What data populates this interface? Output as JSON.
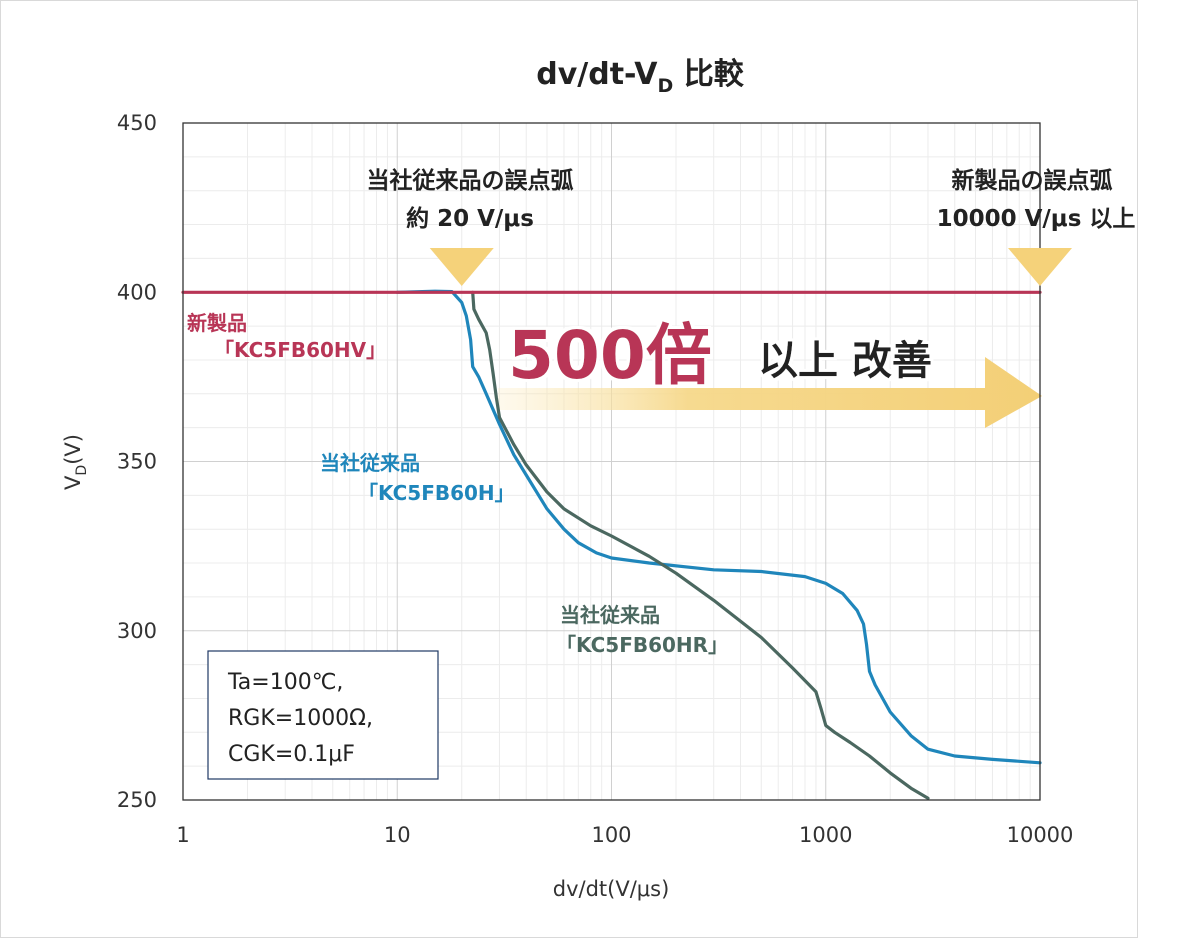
{
  "chart_data": {
    "type": "line",
    "title_main": "dv/dt-V",
    "title_sub": "D",
    "title_tail": " 比較",
    "xlabel": "dv/dt(V/μs)",
    "ylabel_main": "V",
    "ylabel_sub": "D",
    "ylabel_tail": "(V)",
    "xscale": "log",
    "xlim": [
      1,
      10000
    ],
    "ylim": [
      250,
      450
    ],
    "x_ticks": [
      1,
      10,
      100,
      1000,
      10000
    ],
    "x_tick_labels": [
      "1",
      "10",
      "100",
      "1000",
      "10000"
    ],
    "y_ticks": [
      250,
      300,
      350,
      400,
      450
    ],
    "y_tick_labels": [
      "250",
      "300",
      "350",
      "400",
      "450"
    ],
    "series": [
      {
        "name": "新製品「KC5FB60HV」",
        "label_line1": "新製品",
        "label_line2": "「KC5FB60HV」",
        "color": "#b83556",
        "points": [
          [
            1,
            400
          ],
          [
            10000,
            400
          ]
        ]
      },
      {
        "name": "当社従来品「KC5FB60H」",
        "label_line1": "当社従来品",
        "label_line2": "「KC5FB60H」",
        "color": "#1f86bb",
        "points": [
          [
            10,
            400
          ],
          [
            15,
            400.3
          ],
          [
            18,
            400.2
          ],
          [
            20,
            397
          ],
          [
            21,
            393
          ],
          [
            22,
            386
          ],
          [
            22.5,
            378
          ],
          [
            24,
            375
          ],
          [
            26,
            370
          ],
          [
            30,
            361
          ],
          [
            35,
            352
          ],
          [
            40,
            346
          ],
          [
            50,
            336
          ],
          [
            60,
            330
          ],
          [
            70,
            326
          ],
          [
            85,
            323
          ],
          [
            100,
            321.5
          ],
          [
            150,
            320
          ],
          [
            300,
            318
          ],
          [
            500,
            317.5
          ],
          [
            800,
            316
          ],
          [
            1000,
            314
          ],
          [
            1200,
            311
          ],
          [
            1400,
            306
          ],
          [
            1500,
            302
          ],
          [
            1550,
            296
          ],
          [
            1600,
            288
          ],
          [
            1700,
            284
          ],
          [
            2000,
            276
          ],
          [
            2500,
            269
          ],
          [
            3000,
            265
          ],
          [
            4000,
            263
          ],
          [
            6000,
            262
          ],
          [
            10000,
            261
          ]
        ]
      },
      {
        "name": "当社従来品「KC5FB60HR」",
        "label_line1": "当社従来品",
        "label_line2": "「KC5FB60HR」",
        "color": "#4b6860",
        "points": [
          [
            22.5,
            400
          ],
          [
            22.8,
            395
          ],
          [
            24,
            392
          ],
          [
            26,
            388
          ],
          [
            27,
            383
          ],
          [
            28,
            376
          ],
          [
            29,
            369
          ],
          [
            30,
            363
          ],
          [
            35,
            355
          ],
          [
            40,
            349
          ],
          [
            50,
            341
          ],
          [
            60,
            336
          ],
          [
            80,
            331
          ],
          [
            100,
            328
          ],
          [
            150,
            322
          ],
          [
            200,
            317
          ],
          [
            300,
            309
          ],
          [
            500,
            298
          ],
          [
            700,
            289
          ],
          [
            900,
            282
          ],
          [
            950,
            277
          ],
          [
            1000,
            272
          ],
          [
            1100,
            270
          ],
          [
            1300,
            267
          ],
          [
            1600,
            263
          ],
          [
            2000,
            258
          ],
          [
            2500,
            253.5
          ],
          [
            3000,
            250.5
          ]
        ]
      }
    ],
    "annotations": {
      "old_arc_line1": "当社従来品の誤点弧",
      "old_arc_line2": "約 20 V/μs",
      "old_arc_x": 20,
      "new_arc_line1": "新製品の誤点弧",
      "new_arc_line2": "10000 V/μs  以上",
      "new_arc_x": 10000,
      "improve_number": "500倍",
      "improve_suffix": "以上 改善",
      "conditions": [
        "Ta=100℃,",
        "RGK=1000Ω,",
        "CGK=0.1μF"
      ]
    },
    "colors": {
      "arrow": "#f5d27a",
      "frame": "#333333",
      "cond_border": "#1f3864"
    }
  }
}
